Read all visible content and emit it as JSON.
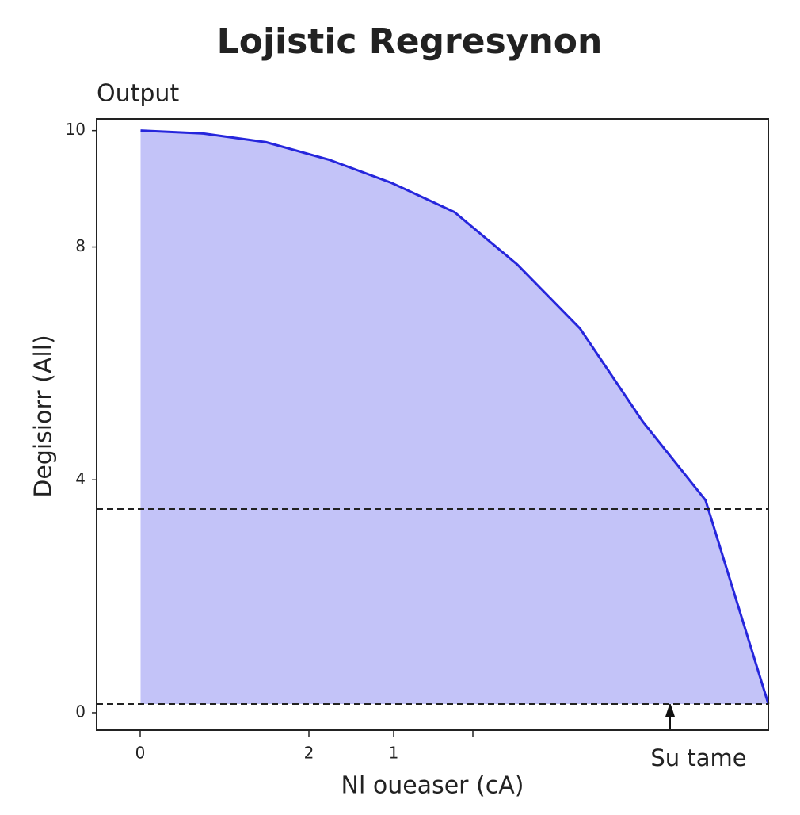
{
  "chart_data": {
    "type": "area",
    "title": "Lojistic Regresynon",
    "y_axis_title": "Output",
    "ylabel": "Degisiorr (All)",
    "xlabel": "Nl oueaser (cA)",
    "annotation": "Su tame",
    "x_tick_labels": [
      "0",
      "2",
      "1",
      null
    ],
    "x": [
      0,
      0.1,
      0.2,
      0.3,
      0.4,
      0.5,
      0.6,
      0.7,
      0.8,
      0.9,
      1.0
    ],
    "series": [
      {
        "color": "#2626dc",
        "fill": "#c3c3f8",
        "values": [
          10,
          9.95,
          9.8,
          9.5,
          9.1,
          8.6,
          7.7,
          6.6,
          5.0,
          3.65,
          0.15
        ]
      }
    ],
    "hlines": [
      3.5,
      0.15
    ],
    "xlim": [
      -0.07,
      1.0
    ],
    "ylim": [
      -0.3,
      10.2
    ],
    "yticks": [
      0,
      4,
      8,
      10
    ]
  }
}
